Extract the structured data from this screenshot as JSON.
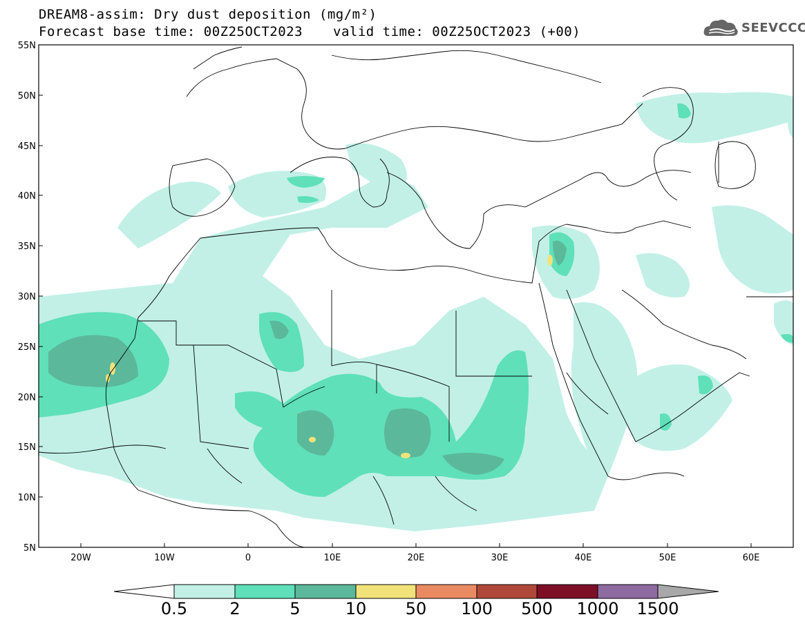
{
  "header": {
    "title": "DREAM8-assim: Dry dust deposition (mg/m²)",
    "base_time": "Forecast base time: 00Z25OCT2023",
    "valid_time": "valid time: 00Z25OCT2023 (+00)"
  },
  "logo": {
    "text": "SEEVCCC",
    "icon": "cloud-icon"
  },
  "map": {
    "lon_range": [
      -25,
      65
    ],
    "lat_range": [
      5,
      55
    ],
    "lat_ticks": [
      "55N",
      "50N",
      "45N",
      "40N",
      "35N",
      "30N",
      "25N",
      "20N",
      "15N",
      "10N",
      "5N"
    ],
    "lon_ticks": [
      "20W",
      "10W",
      "0",
      "10E",
      "20E",
      "30E",
      "40E",
      "50E",
      "60E"
    ]
  },
  "colorbar": {
    "labels": [
      "0.5",
      "2",
      "5",
      "10",
      "50",
      "100",
      "500",
      "1000",
      "1500"
    ],
    "colors": [
      "#c2f0e6",
      "#5fe0b8",
      "#5cb89a",
      "#f2e27a",
      "#ea8a62",
      "#b0483a",
      "#7d0e26",
      "#8d6aa0",
      "#a8a8a8"
    ]
  }
}
